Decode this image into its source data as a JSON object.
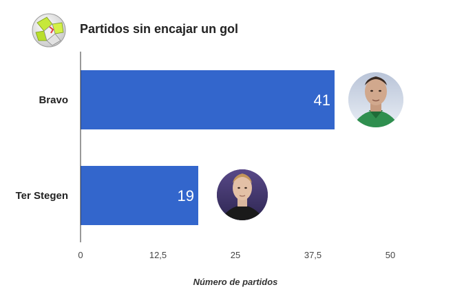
{
  "title": "Partidos sin encajar un gol",
  "logo_icon": "soccer-ball-icon",
  "colors": {
    "bar": "#3366cc",
    "axis": "#333333",
    "value_text": "#ffffff"
  },
  "chart_data": {
    "type": "bar",
    "orientation": "horizontal",
    "title": "Partidos sin encajar un gol",
    "categories": [
      "Bravo",
      "Ter Stegen"
    ],
    "values": [
      41,
      19
    ],
    "value_labels": [
      "41",
      "19"
    ],
    "xlabel": "Número de partidos",
    "ylabel": "",
    "xlim": [
      0,
      50
    ],
    "x_ticks": [
      0,
      12.5,
      25,
      37.5,
      50
    ],
    "x_tick_labels": [
      "0",
      "12,5",
      "25",
      "37,5",
      "50"
    ],
    "grid": false,
    "avatars": [
      "player-photo-bravo",
      "player-photo-ter-stegen"
    ]
  }
}
